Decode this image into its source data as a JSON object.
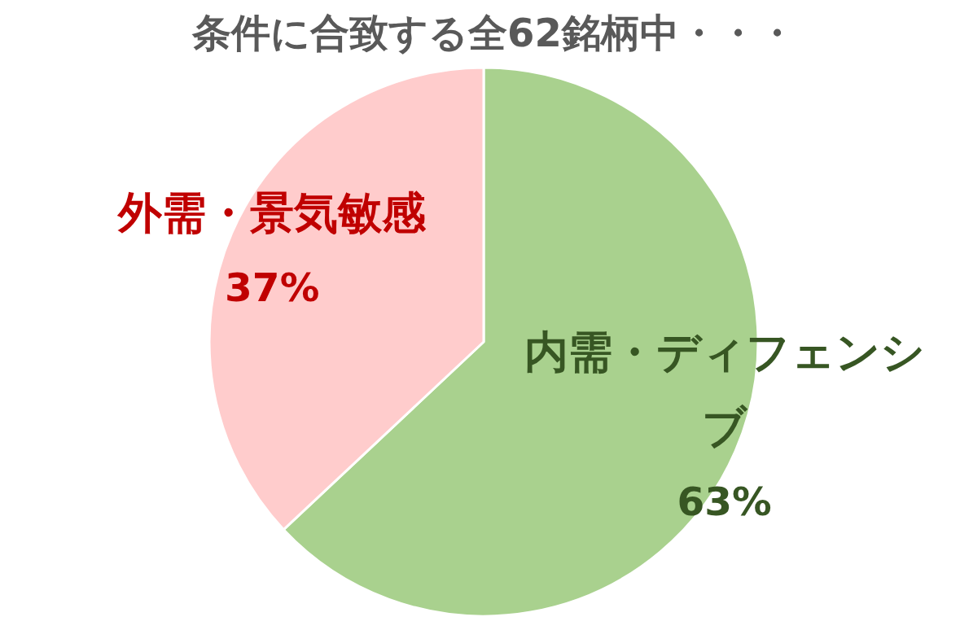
{
  "chart_data": {
    "type": "pie",
    "title": "条件に合致する全62銘柄中・・・",
    "categories": [
      "内需・ディフェンシブ",
      "外需・景気敏感"
    ],
    "values": [
      63,
      37
    ],
    "colors": [
      "#a9d18e",
      "#ffcccc"
    ],
    "value_labels": [
      "63%",
      "37%"
    ]
  }
}
